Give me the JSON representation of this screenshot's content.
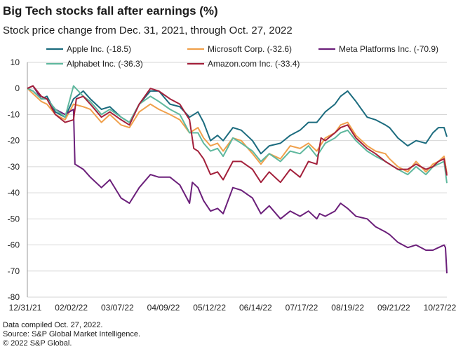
{
  "header": {
    "title": "Big Tech stocks fall after earnings (%)",
    "subtitle": "Stock price change from Dec. 31, 2021, through Oct. 27, 2022"
  },
  "footer": {
    "line1": "Data compiled Oct. 27, 2022.",
    "line2": "Source: S&P Global Market Intelligence.",
    "line3": "© 2022 S&P Global."
  },
  "chart_data": {
    "type": "line",
    "title": "Big Tech stocks fall after earnings (%)",
    "subtitle": "Stock price change from Dec. 31, 2021, through Oct. 27, 2022",
    "xlabel": "",
    "ylabel": "",
    "ylim": [
      -80,
      10
    ],
    "yticks": [
      10,
      0,
      -10,
      -20,
      -30,
      -40,
      -50,
      -60,
      -70,
      -80
    ],
    "xlim": [
      "2021-12-31",
      "2022-10-27"
    ],
    "xticks": [
      "12/31/21",
      "02/02/22",
      "03/07/22",
      "04/09/22",
      "05/12/22",
      "06/14/22",
      "07/17/22",
      "08/19/22",
      "09/21/22",
      "10/27/22"
    ],
    "grid": "horizontal",
    "legend": "top, two rows",
    "series": [
      {
        "name": "Apple Inc. (-18.5)",
        "color": "#1b6b7e",
        "points": [
          [
            "2021-12-31",
            0
          ],
          [
            "2022-01-04",
            -1
          ],
          [
            "2022-01-10",
            -4
          ],
          [
            "2022-01-14",
            -3
          ],
          [
            "2022-01-20",
            -9
          ],
          [
            "2022-01-27",
            -11
          ],
          [
            "2022-02-02",
            -4
          ],
          [
            "2022-02-09",
            -1
          ],
          [
            "2022-02-14",
            -4
          ],
          [
            "2022-02-22",
            -8
          ],
          [
            "2022-02-28",
            -7
          ],
          [
            "2022-03-08",
            -11
          ],
          [
            "2022-03-14",
            -13
          ],
          [
            "2022-03-21",
            -6
          ],
          [
            "2022-03-29",
            -1
          ],
          [
            "2022-04-04",
            -1
          ],
          [
            "2022-04-12",
            -6
          ],
          [
            "2022-04-19",
            -7
          ],
          [
            "2022-04-26",
            -11
          ],
          [
            "2022-05-02",
            -9
          ],
          [
            "2022-05-06",
            -13
          ],
          [
            "2022-05-11",
            -20
          ],
          [
            "2022-05-16",
            -18
          ],
          [
            "2022-05-20",
            -20
          ],
          [
            "2022-05-27",
            -15
          ],
          [
            "2022-06-02",
            -16
          ],
          [
            "2022-06-10",
            -20
          ],
          [
            "2022-06-16",
            -25
          ],
          [
            "2022-06-22",
            -22
          ],
          [
            "2022-06-30",
            -21
          ],
          [
            "2022-07-07",
            -18
          ],
          [
            "2022-07-14",
            -16
          ],
          [
            "2022-07-20",
            -13
          ],
          [
            "2022-07-26",
            -13
          ],
          [
            "2022-08-01",
            -9
          ],
          [
            "2022-08-08",
            -6
          ],
          [
            "2022-08-12",
            -3
          ],
          [
            "2022-08-17",
            -1
          ],
          [
            "2022-08-23",
            -5
          ],
          [
            "2022-08-31",
            -11
          ],
          [
            "2022-09-06",
            -12
          ],
          [
            "2022-09-13",
            -14
          ],
          [
            "2022-09-16",
            -15
          ],
          [
            "2022-09-22",
            -19
          ],
          [
            "2022-09-29",
            -22
          ],
          [
            "2022-10-05",
            -20
          ],
          [
            "2022-10-12",
            -21
          ],
          [
            "2022-10-17",
            -17
          ],
          [
            "2022-10-21",
            -15
          ],
          [
            "2022-10-25",
            -15
          ],
          [
            "2022-10-27",
            -18.5
          ]
        ]
      },
      {
        "name": "Microsoft Corp. (-32.6)",
        "color": "#f0a04b",
        "points": [
          [
            "2021-12-31",
            0
          ],
          [
            "2022-01-04",
            -2
          ],
          [
            "2022-01-10",
            -5
          ],
          [
            "2022-01-14",
            -6
          ],
          [
            "2022-01-20",
            -10
          ],
          [
            "2022-01-27",
            -12
          ],
          [
            "2022-02-02",
            -6
          ],
          [
            "2022-02-09",
            -7
          ],
          [
            "2022-02-14",
            -8
          ],
          [
            "2022-02-22",
            -13
          ],
          [
            "2022-02-28",
            -10
          ],
          [
            "2022-03-08",
            -14
          ],
          [
            "2022-03-14",
            -15
          ],
          [
            "2022-03-21",
            -9
          ],
          [
            "2022-03-29",
            -6
          ],
          [
            "2022-04-04",
            -8
          ],
          [
            "2022-04-12",
            -10
          ],
          [
            "2022-04-19",
            -12
          ],
          [
            "2022-04-26",
            -17
          ],
          [
            "2022-05-02",
            -15
          ],
          [
            "2022-05-06",
            -19
          ],
          [
            "2022-05-11",
            -22
          ],
          [
            "2022-05-16",
            -21
          ],
          [
            "2022-05-20",
            -24
          ],
          [
            "2022-05-27",
            -19
          ],
          [
            "2022-06-02",
            -20
          ],
          [
            "2022-06-10",
            -25
          ],
          [
            "2022-06-16",
            -29
          ],
          [
            "2022-06-22",
            -25
          ],
          [
            "2022-06-30",
            -27
          ],
          [
            "2022-07-07",
            -22
          ],
          [
            "2022-07-14",
            -23
          ],
          [
            "2022-07-20",
            -21
          ],
          [
            "2022-07-26",
            -24
          ],
          [
            "2022-08-01",
            -19
          ],
          [
            "2022-08-08",
            -17
          ],
          [
            "2022-08-12",
            -14
          ],
          [
            "2022-08-17",
            -13
          ],
          [
            "2022-08-23",
            -18
          ],
          [
            "2022-08-31",
            -22
          ],
          [
            "2022-09-06",
            -24
          ],
          [
            "2022-09-13",
            -25
          ],
          [
            "2022-09-16",
            -27
          ],
          [
            "2022-09-22",
            -30
          ],
          [
            "2022-09-29",
            -32
          ],
          [
            "2022-10-05",
            -28
          ],
          [
            "2022-10-12",
            -32
          ],
          [
            "2022-10-17",
            -29
          ],
          [
            "2022-10-21",
            -28
          ],
          [
            "2022-10-25",
            -26
          ],
          [
            "2022-10-27",
            -32.6
          ]
        ]
      },
      {
        "name": "Meta Platforms Inc. (-70.9)",
        "color": "#6b1f7a",
        "points": [
          [
            "2021-12-31",
            0
          ],
          [
            "2022-01-04",
            1
          ],
          [
            "2022-01-10",
            -4
          ],
          [
            "2022-01-14",
            -4
          ],
          [
            "2022-01-20",
            -8
          ],
          [
            "2022-01-27",
            -10
          ],
          [
            "2022-02-02",
            -8
          ],
          [
            "2022-02-03",
            -29
          ],
          [
            "2022-02-09",
            -31
          ],
          [
            "2022-02-14",
            -34
          ],
          [
            "2022-02-22",
            -38
          ],
          [
            "2022-02-28",
            -35
          ],
          [
            "2022-03-08",
            -42
          ],
          [
            "2022-03-14",
            -44
          ],
          [
            "2022-03-21",
            -38
          ],
          [
            "2022-03-29",
            -33
          ],
          [
            "2022-04-04",
            -34
          ],
          [
            "2022-04-12",
            -34
          ],
          [
            "2022-04-19",
            -37
          ],
          [
            "2022-04-26",
            -44
          ],
          [
            "2022-04-28",
            -36
          ],
          [
            "2022-05-02",
            -38
          ],
          [
            "2022-05-06",
            -43
          ],
          [
            "2022-05-11",
            -47
          ],
          [
            "2022-05-16",
            -46
          ],
          [
            "2022-05-20",
            -48
          ],
          [
            "2022-05-27",
            -38
          ],
          [
            "2022-06-02",
            -39
          ],
          [
            "2022-06-10",
            -42
          ],
          [
            "2022-06-16",
            -48
          ],
          [
            "2022-06-22",
            -45
          ],
          [
            "2022-06-30",
            -50
          ],
          [
            "2022-07-07",
            -47
          ],
          [
            "2022-07-14",
            -49
          ],
          [
            "2022-07-20",
            -47
          ],
          [
            "2022-07-26",
            -50
          ],
          [
            "2022-07-28",
            -48
          ],
          [
            "2022-08-01",
            -49
          ],
          [
            "2022-08-08",
            -47
          ],
          [
            "2022-08-12",
            -44
          ],
          [
            "2022-08-17",
            -46
          ],
          [
            "2022-08-23",
            -49
          ],
          [
            "2022-08-31",
            -50
          ],
          [
            "2022-09-06",
            -53
          ],
          [
            "2022-09-13",
            -55
          ],
          [
            "2022-09-16",
            -56
          ],
          [
            "2022-09-22",
            -59
          ],
          [
            "2022-09-29",
            -61
          ],
          [
            "2022-10-05",
            -60
          ],
          [
            "2022-10-12",
            -62
          ],
          [
            "2022-10-17",
            -62
          ],
          [
            "2022-10-21",
            -61
          ],
          [
            "2022-10-25",
            -60
          ],
          [
            "2022-10-26",
            -61
          ],
          [
            "2022-10-27",
            -70.9
          ]
        ]
      },
      {
        "name": "Alphabet Inc. (-36.3)",
        "color": "#5fb89e",
        "points": [
          [
            "2021-12-31",
            0
          ],
          [
            "2022-01-04",
            -1
          ],
          [
            "2022-01-10",
            -4
          ],
          [
            "2022-01-14",
            -4
          ],
          [
            "2022-01-20",
            -8
          ],
          [
            "2022-01-27",
            -11
          ],
          [
            "2022-02-02",
            1
          ],
          [
            "2022-02-09",
            -3
          ],
          [
            "2022-02-14",
            -5
          ],
          [
            "2022-02-22",
            -10
          ],
          [
            "2022-02-28",
            -8
          ],
          [
            "2022-03-08",
            -11
          ],
          [
            "2022-03-14",
            -13
          ],
          [
            "2022-03-21",
            -6
          ],
          [
            "2022-03-29",
            -3
          ],
          [
            "2022-04-04",
            -5
          ],
          [
            "2022-04-12",
            -8
          ],
          [
            "2022-04-19",
            -10
          ],
          [
            "2022-04-26",
            -17
          ],
          [
            "2022-05-02",
            -17
          ],
          [
            "2022-05-06",
            -21
          ],
          [
            "2022-05-11",
            -24
          ],
          [
            "2022-05-16",
            -23
          ],
          [
            "2022-05-20",
            -26
          ],
          [
            "2022-05-27",
            -19
          ],
          [
            "2022-06-02",
            -21
          ],
          [
            "2022-06-10",
            -24
          ],
          [
            "2022-06-16",
            -28
          ],
          [
            "2022-06-22",
            -25
          ],
          [
            "2022-06-30",
            -28
          ],
          [
            "2022-07-07",
            -24
          ],
          [
            "2022-07-14",
            -25
          ],
          [
            "2022-07-20",
            -22
          ],
          [
            "2022-07-26",
            -26
          ],
          [
            "2022-08-01",
            -21
          ],
          [
            "2022-08-08",
            -19
          ],
          [
            "2022-08-12",
            -17
          ],
          [
            "2022-08-17",
            -16
          ],
          [
            "2022-08-23",
            -20
          ],
          [
            "2022-08-31",
            -24
          ],
          [
            "2022-09-06",
            -26
          ],
          [
            "2022-09-13",
            -28
          ],
          [
            "2022-09-16",
            -29
          ],
          [
            "2022-09-22",
            -31
          ],
          [
            "2022-09-29",
            -33
          ],
          [
            "2022-10-05",
            -30
          ],
          [
            "2022-10-12",
            -33
          ],
          [
            "2022-10-17",
            -30
          ],
          [
            "2022-10-21",
            -29
          ],
          [
            "2022-10-25",
            -28
          ],
          [
            "2022-10-27",
            -36.3
          ]
        ]
      },
      {
        "name": "Amazon.com Inc. (-33.4)",
        "color": "#a3203b",
        "points": [
          [
            "2021-12-31",
            0
          ],
          [
            "2022-01-04",
            1
          ],
          [
            "2022-01-10",
            -3
          ],
          [
            "2022-01-14",
            -4
          ],
          [
            "2022-01-20",
            -10
          ],
          [
            "2022-01-27",
            -13
          ],
          [
            "2022-02-02",
            -12
          ],
          [
            "2022-02-04",
            -4
          ],
          [
            "2022-02-09",
            -3
          ],
          [
            "2022-02-14",
            -6
          ],
          [
            "2022-02-22",
            -11
          ],
          [
            "2022-02-28",
            -9
          ],
          [
            "2022-03-08",
            -12
          ],
          [
            "2022-03-14",
            -14
          ],
          [
            "2022-03-21",
            -6
          ],
          [
            "2022-03-29",
            0
          ],
          [
            "2022-04-04",
            -1
          ],
          [
            "2022-04-12",
            -4
          ],
          [
            "2022-04-19",
            -6
          ],
          [
            "2022-04-26",
            -12
          ],
          [
            "2022-04-29",
            -23
          ],
          [
            "2022-05-02",
            -24
          ],
          [
            "2022-05-06",
            -27
          ],
          [
            "2022-05-11",
            -33
          ],
          [
            "2022-05-16",
            -32
          ],
          [
            "2022-05-20",
            -35
          ],
          [
            "2022-05-27",
            -28
          ],
          [
            "2022-06-02",
            -28
          ],
          [
            "2022-06-10",
            -31
          ],
          [
            "2022-06-16",
            -36
          ],
          [
            "2022-06-22",
            -32
          ],
          [
            "2022-06-30",
            -36
          ],
          [
            "2022-07-07",
            -31
          ],
          [
            "2022-07-14",
            -34
          ],
          [
            "2022-07-20",
            -28
          ],
          [
            "2022-07-26",
            -29
          ],
          [
            "2022-07-29",
            -19
          ],
          [
            "2022-08-01",
            -20
          ],
          [
            "2022-08-08",
            -17
          ],
          [
            "2022-08-12",
            -15
          ],
          [
            "2022-08-17",
            -14
          ],
          [
            "2022-08-23",
            -19
          ],
          [
            "2022-08-31",
            -23
          ],
          [
            "2022-09-06",
            -25
          ],
          [
            "2022-09-13",
            -28
          ],
          [
            "2022-09-16",
            -29
          ],
          [
            "2022-09-22",
            -31
          ],
          [
            "2022-09-29",
            -31
          ],
          [
            "2022-10-05",
            -29
          ],
          [
            "2022-10-12",
            -31
          ],
          [
            "2022-10-17",
            -30
          ],
          [
            "2022-10-21",
            -28
          ],
          [
            "2022-10-25",
            -27
          ],
          [
            "2022-10-27",
            -33.4
          ]
        ]
      }
    ]
  }
}
